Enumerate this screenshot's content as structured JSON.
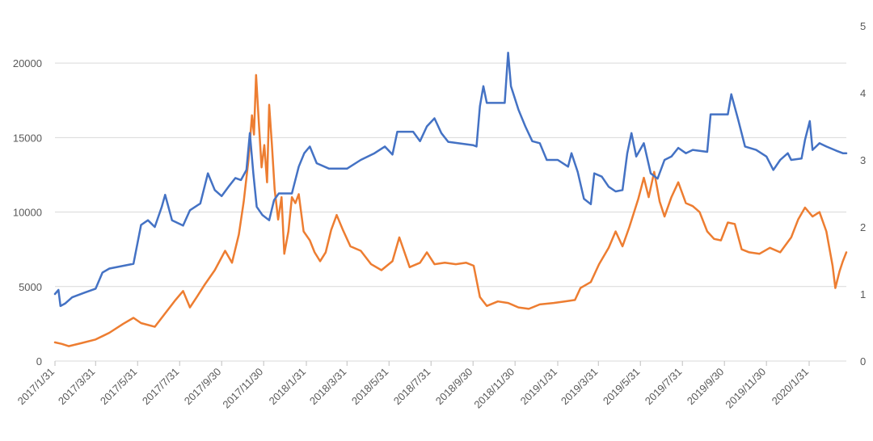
{
  "chart_data": {
    "type": "line",
    "title": "",
    "xlabel": "",
    "ylabel": "",
    "y2label": "",
    "ylim": [
      0,
      22500
    ],
    "y2lim": [
      0,
      5
    ],
    "y_ticks": [
      0,
      5000,
      10000,
      15000,
      20000
    ],
    "y2_ticks": [
      0,
      1,
      2,
      3,
      4,
      5
    ],
    "grid": true,
    "legend": "none",
    "x_tick_labels": [
      "2017/1/31",
      "2017/3/31",
      "2017/5/31",
      "2017/7/31",
      "2017/9/30",
      "2017/11/30",
      "2018/1/31",
      "2018/3/31",
      "2018/5/31",
      "2018/7/31",
      "2018/9/30",
      "2018/11/30",
      "2019/1/31",
      "2019/3/31",
      "2019/5/31",
      "2019/7/31",
      "2019/9/30",
      "2019/11/30",
      "2020/1/31"
    ],
    "x_start": "2017-01-31",
    "x_end": "2020-03-25",
    "series": [
      {
        "axis": "left",
        "color": "#ed7d31",
        "points": [
          [
            "2017-01-31",
            1250
          ],
          [
            "2017-02-10",
            1150
          ],
          [
            "2017-02-20",
            1000
          ],
          [
            "2017-03-10",
            1200
          ],
          [
            "2017-03-31",
            1450
          ],
          [
            "2017-04-20",
            1900
          ],
          [
            "2017-05-10",
            2500
          ],
          [
            "2017-05-25",
            2900
          ],
          [
            "2017-06-05",
            2550
          ],
          [
            "2017-06-25",
            2300
          ],
          [
            "2017-07-10",
            3200
          ],
          [
            "2017-07-25",
            4100
          ],
          [
            "2017-08-05",
            4700
          ],
          [
            "2017-08-15",
            3600
          ],
          [
            "2017-08-25",
            4300
          ],
          [
            "2017-09-05",
            5100
          ],
          [
            "2017-09-20",
            6100
          ],
          [
            "2017-10-05",
            7400
          ],
          [
            "2017-10-15",
            6600
          ],
          [
            "2017-10-25",
            8500
          ],
          [
            "2017-11-01",
            10700
          ],
          [
            "2017-11-08",
            13500
          ],
          [
            "2017-11-13",
            16500
          ],
          [
            "2017-11-16",
            15200
          ],
          [
            "2017-11-19",
            19200
          ],
          [
            "2017-11-23",
            16000
          ],
          [
            "2017-11-27",
            13000
          ],
          [
            "2017-12-01",
            14500
          ],
          [
            "2017-12-05",
            12000
          ],
          [
            "2017-12-08",
            17200
          ],
          [
            "2017-12-12",
            14500
          ],
          [
            "2017-12-16",
            11500
          ],
          [
            "2017-12-21",
            9500
          ],
          [
            "2017-12-26",
            11000
          ],
          [
            "2017-12-30",
            7200
          ],
          [
            "2018-01-05",
            8700
          ],
          [
            "2018-01-10",
            11000
          ],
          [
            "2018-01-15",
            10600
          ],
          [
            "2018-01-20",
            11200
          ],
          [
            "2018-01-27",
            8700
          ],
          [
            "2018-02-05",
            8100
          ],
          [
            "2018-02-12",
            7300
          ],
          [
            "2018-02-20",
            6700
          ],
          [
            "2018-02-28",
            7300
          ],
          [
            "2018-03-08",
            8800
          ],
          [
            "2018-03-16",
            9800
          ],
          [
            "2018-03-25",
            8800
          ],
          [
            "2018-04-05",
            7700
          ],
          [
            "2018-04-20",
            7400
          ],
          [
            "2018-05-05",
            6500
          ],
          [
            "2018-05-20",
            6100
          ],
          [
            "2018-06-05",
            6700
          ],
          [
            "2018-06-15",
            8300
          ],
          [
            "2018-06-30",
            6300
          ],
          [
            "2018-07-15",
            6600
          ],
          [
            "2018-07-25",
            7300
          ],
          [
            "2018-08-05",
            6500
          ],
          [
            "2018-08-20",
            6600
          ],
          [
            "2018-09-05",
            6500
          ],
          [
            "2018-09-20",
            6600
          ],
          [
            "2018-10-01",
            6400
          ],
          [
            "2018-10-10",
            4300
          ],
          [
            "2018-10-20",
            3700
          ],
          [
            "2018-11-05",
            4000
          ],
          [
            "2018-11-20",
            3900
          ],
          [
            "2018-12-05",
            3600
          ],
          [
            "2018-12-20",
            3500
          ],
          [
            "2019-01-05",
            3800
          ],
          [
            "2019-01-25",
            3900
          ],
          [
            "2019-02-10",
            4000
          ],
          [
            "2019-02-25",
            4100
          ],
          [
            "2019-03-05",
            4900
          ],
          [
            "2019-03-20",
            5300
          ],
          [
            "2019-04-01",
            6500
          ],
          [
            "2019-04-15",
            7600
          ],
          [
            "2019-04-25",
            8700
          ],
          [
            "2019-05-05",
            7700
          ],
          [
            "2019-05-15",
            9000
          ],
          [
            "2019-05-28",
            10900
          ],
          [
            "2019-06-05",
            12300
          ],
          [
            "2019-06-12",
            11000
          ],
          [
            "2019-06-20",
            12700
          ],
          [
            "2019-06-28",
            10700
          ],
          [
            "2019-07-05",
            9700
          ],
          [
            "2019-07-15",
            11000
          ],
          [
            "2019-07-25",
            12000
          ],
          [
            "2019-08-05",
            10600
          ],
          [
            "2019-08-15",
            10400
          ],
          [
            "2019-08-25",
            10000
          ],
          [
            "2019-09-05",
            8700
          ],
          [
            "2019-09-15",
            8200
          ],
          [
            "2019-09-25",
            8100
          ],
          [
            "2019-10-05",
            9300
          ],
          [
            "2019-10-15",
            9200
          ],
          [
            "2019-10-25",
            7500
          ],
          [
            "2019-11-05",
            7300
          ],
          [
            "2019-11-20",
            7200
          ],
          [
            "2019-12-05",
            7600
          ],
          [
            "2019-12-20",
            7300
          ],
          [
            "2020-01-05",
            8300
          ],
          [
            "2020-01-15",
            9500
          ],
          [
            "2020-01-25",
            10300
          ],
          [
            "2020-02-05",
            9700
          ],
          [
            "2020-02-15",
            10000
          ],
          [
            "2020-02-25",
            8700
          ],
          [
            "2020-03-05",
            6400
          ],
          [
            "2020-03-09",
            4900
          ],
          [
            "2020-03-15",
            6000
          ],
          [
            "2020-03-20",
            6700
          ],
          [
            "2020-03-25",
            7300
          ]
        ]
      },
      {
        "axis": "right",
        "color": "#4472c4",
        "points": [
          [
            "2017-01-31",
            1.0
          ],
          [
            "2017-02-05",
            1.06
          ],
          [
            "2017-02-08",
            0.82
          ],
          [
            "2017-02-15",
            0.86
          ],
          [
            "2017-02-25",
            0.95
          ],
          [
            "2017-03-15",
            1.02
          ],
          [
            "2017-03-31",
            1.08
          ],
          [
            "2017-04-10",
            1.32
          ],
          [
            "2017-04-20",
            1.38
          ],
          [
            "2017-05-10",
            1.42
          ],
          [
            "2017-05-25",
            1.45
          ],
          [
            "2017-06-05",
            2.03
          ],
          [
            "2017-06-15",
            2.1
          ],
          [
            "2017-06-25",
            2.0
          ],
          [
            "2017-07-05",
            2.3
          ],
          [
            "2017-07-10",
            2.48
          ],
          [
            "2017-07-20",
            2.1
          ],
          [
            "2017-08-05",
            2.02
          ],
          [
            "2017-08-15",
            2.25
          ],
          [
            "2017-08-30",
            2.35
          ],
          [
            "2017-09-10",
            2.8
          ],
          [
            "2017-09-20",
            2.55
          ],
          [
            "2017-09-30",
            2.46
          ],
          [
            "2017-10-10",
            2.6
          ],
          [
            "2017-10-20",
            2.73
          ],
          [
            "2017-10-28",
            2.7
          ],
          [
            "2017-11-05",
            2.85
          ],
          [
            "2017-11-10",
            3.4
          ],
          [
            "2017-11-15",
            2.8
          ],
          [
            "2017-11-20",
            2.3
          ],
          [
            "2017-11-28",
            2.18
          ],
          [
            "2017-12-08",
            2.1
          ],
          [
            "2017-12-15",
            2.4
          ],
          [
            "2017-12-22",
            2.5
          ],
          [
            "2018-01-10",
            2.5
          ],
          [
            "2018-01-20",
            2.9
          ],
          [
            "2018-01-28",
            3.1
          ],
          [
            "2018-02-05",
            3.2
          ],
          [
            "2018-02-15",
            2.95
          ],
          [
            "2018-03-05",
            2.87
          ],
          [
            "2018-03-31",
            2.87
          ],
          [
            "2018-04-20",
            3.0
          ],
          [
            "2018-05-10",
            3.1
          ],
          [
            "2018-05-25",
            3.2
          ],
          [
            "2018-06-05",
            3.08
          ],
          [
            "2018-06-12",
            3.42
          ],
          [
            "2018-07-05",
            3.42
          ],
          [
            "2018-07-15",
            3.28
          ],
          [
            "2018-07-25",
            3.5
          ],
          [
            "2018-08-05",
            3.62
          ],
          [
            "2018-08-15",
            3.4
          ],
          [
            "2018-08-25",
            3.27
          ],
          [
            "2018-09-30",
            3.22
          ],
          [
            "2018-10-05",
            3.2
          ],
          [
            "2018-10-10",
            3.8
          ],
          [
            "2018-10-15",
            4.1
          ],
          [
            "2018-10-20",
            3.85
          ],
          [
            "2018-11-15",
            3.85
          ],
          [
            "2018-11-20",
            4.6
          ],
          [
            "2018-11-24",
            4.1
          ],
          [
            "2018-12-05",
            3.75
          ],
          [
            "2018-12-15",
            3.5
          ],
          [
            "2018-12-25",
            3.28
          ],
          [
            "2019-01-05",
            3.25
          ],
          [
            "2019-01-15",
            3.0
          ],
          [
            "2019-01-31",
            3.0
          ],
          [
            "2019-02-15",
            2.9
          ],
          [
            "2019-02-20",
            3.1
          ],
          [
            "2019-03-01",
            2.82
          ],
          [
            "2019-03-10",
            2.42
          ],
          [
            "2019-03-20",
            2.34
          ],
          [
            "2019-03-25",
            2.8
          ],
          [
            "2019-04-05",
            2.75
          ],
          [
            "2019-04-15",
            2.6
          ],
          [
            "2019-04-25",
            2.53
          ],
          [
            "2019-05-05",
            2.55
          ],
          [
            "2019-05-12",
            3.1
          ],
          [
            "2019-05-18",
            3.4
          ],
          [
            "2019-05-25",
            3.05
          ],
          [
            "2019-06-05",
            3.25
          ],
          [
            "2019-06-15",
            2.8
          ],
          [
            "2019-06-25",
            2.72
          ],
          [
            "2019-07-05",
            3.0
          ],
          [
            "2019-07-15",
            3.05
          ],
          [
            "2019-07-25",
            3.18
          ],
          [
            "2019-08-05",
            3.1
          ],
          [
            "2019-08-15",
            3.15
          ],
          [
            "2019-09-05",
            3.12
          ],
          [
            "2019-09-10",
            3.68
          ],
          [
            "2019-09-25",
            3.68
          ],
          [
            "2019-10-05",
            3.68
          ],
          [
            "2019-10-10",
            3.98
          ],
          [
            "2019-10-20",
            3.6
          ],
          [
            "2019-10-30",
            3.2
          ],
          [
            "2019-11-15",
            3.15
          ],
          [
            "2019-11-30",
            3.05
          ],
          [
            "2019-12-10",
            2.85
          ],
          [
            "2019-12-20",
            3.0
          ],
          [
            "2019-12-31",
            3.1
          ],
          [
            "2020-01-05",
            3.0
          ],
          [
            "2020-01-20",
            3.02
          ],
          [
            "2020-01-25",
            3.3
          ],
          [
            "2020-02-01",
            3.58
          ],
          [
            "2020-02-05",
            3.15
          ],
          [
            "2020-02-15",
            3.25
          ],
          [
            "2020-02-25",
            3.2
          ],
          [
            "2020-03-10",
            3.14
          ],
          [
            "2020-03-20",
            3.1
          ],
          [
            "2020-03-25",
            3.1
          ]
        ]
      }
    ]
  }
}
